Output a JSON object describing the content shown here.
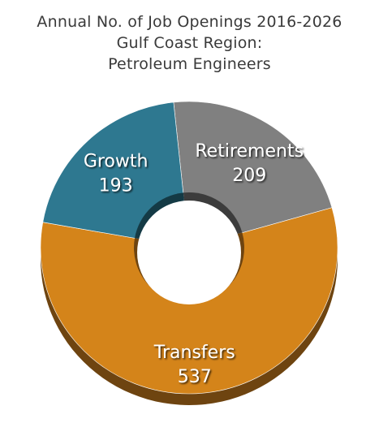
{
  "chart_data": {
    "type": "pie",
    "title_lines": [
      "Annual No. of Job Openings 2016-2026",
      "Gulf Coast Region:",
      "Petroleum Engineers"
    ],
    "slices": [
      {
        "label": "Retirements",
        "value": 209,
        "value_text": "209",
        "color": "#808080",
        "shade": "#3c3c3c"
      },
      {
        "label": "Transfers",
        "value": 537,
        "value_text": "537",
        "color": "#d4841a",
        "shade": "#6e4410"
      },
      {
        "label": "Growth",
        "value": 193,
        "value_text": "193",
        "color": "#2e7890",
        "shade": "#143a45"
      }
    ],
    "donut": true,
    "legend": "none"
  }
}
